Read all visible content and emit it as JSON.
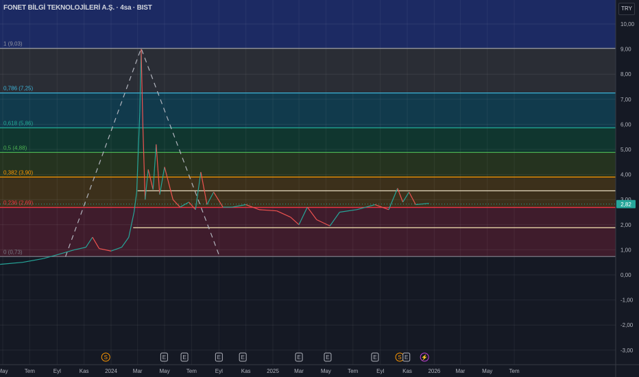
{
  "header": {
    "title": "FONET BİLGİ TEKNOLOJİLERİ A.Ş. · 4sa · BIST",
    "currency": "TRY"
  },
  "chart_data": {
    "type": "line",
    "ylim": [
      -3.3,
      10.5
    ],
    "y_ticks": [
      "10,00",
      "9,00",
      "8,00",
      "7,00",
      "6,00",
      "5,00",
      "4,00",
      "3,00",
      "2,00",
      "1,00",
      "0,00",
      "-1,00",
      "-2,00",
      "-3,00"
    ],
    "y_tick_values": [
      10,
      9,
      8,
      7,
      6,
      5,
      4,
      3,
      2,
      1,
      0,
      -1,
      -2,
      -3
    ],
    "x_ticks": [
      {
        "label": "May",
        "date": "2023-05-01"
      },
      {
        "label": "Tem",
        "date": "2023-07-01"
      },
      {
        "label": "Eyl",
        "date": "2023-09-01"
      },
      {
        "label": "Kas",
        "date": "2023-11-01"
      },
      {
        "label": "2024",
        "date": "2024-01-01"
      },
      {
        "label": "Mar",
        "date": "2024-03-01"
      },
      {
        "label": "May",
        "date": "2024-05-01"
      },
      {
        "label": "Tem",
        "date": "2024-07-01"
      },
      {
        "label": "Eyl",
        "date": "2024-09-01"
      },
      {
        "label": "Kas",
        "date": "2024-11-01"
      },
      {
        "label": "2025",
        "date": "2025-01-01"
      },
      {
        "label": "Mar",
        "date": "2025-03-01"
      },
      {
        "label": "May",
        "date": "2025-05-01"
      },
      {
        "label": "Tem",
        "date": "2025-07-01"
      },
      {
        "label": "Eyl",
        "date": "2025-09-01"
      },
      {
        "label": "Kas",
        "date": "2025-11-01"
      },
      {
        "label": "2026",
        "date": "2026-01-01"
      },
      {
        "label": "Mar",
        "date": "2026-03-01"
      },
      {
        "label": "May",
        "date": "2026-05-01"
      },
      {
        "label": "Tem",
        "date": "2026-07-01"
      }
    ],
    "last_price": "2,82",
    "last_price_value": 2.82,
    "series": [
      {
        "color": "#26a69a",
        "points": [
          [
            "2023-04-25",
            0.42
          ],
          [
            "2023-06-15",
            0.5
          ],
          [
            "2023-08-01",
            0.65
          ],
          [
            "2023-09-01",
            0.8
          ],
          [
            "2023-10-10",
            1.0
          ],
          [
            "2023-11-05",
            1.1
          ],
          [
            "2023-11-20",
            1.5
          ],
          [
            "2023-12-05",
            1.05
          ],
          [
            "2024-01-01",
            0.95
          ],
          [
            "2024-01-25",
            1.1
          ],
          [
            "2024-02-10",
            1.5
          ],
          [
            "2024-02-22",
            2.5
          ],
          [
            "2024-02-28",
            3.3
          ],
          [
            "2024-03-06",
            6.5
          ],
          [
            "2024-03-09",
            9.0
          ],
          [
            "2024-03-13",
            5.9
          ],
          [
            "2024-03-18",
            3.0
          ],
          [
            "2024-03-25",
            4.2
          ],
          [
            "2024-04-05",
            3.4
          ],
          [
            "2024-04-12",
            5.2
          ],
          [
            "2024-04-20",
            3.2
          ],
          [
            "2024-05-01",
            4.3
          ],
          [
            "2024-05-20",
            3.0
          ],
          [
            "2024-06-05",
            2.7
          ],
          [
            "2024-06-25",
            2.9
          ],
          [
            "2024-07-10",
            2.6
          ],
          [
            "2024-07-22",
            4.1
          ],
          [
            "2024-08-05",
            2.8
          ],
          [
            "2024-08-20",
            3.3
          ],
          [
            "2024-09-10",
            2.7
          ],
          [
            "2024-10-01",
            2.7
          ],
          [
            "2024-11-01",
            2.8
          ],
          [
            "2024-12-01",
            2.6
          ],
          [
            "2025-01-10",
            2.55
          ],
          [
            "2025-02-10",
            2.3
          ],
          [
            "2025-03-01",
            2.0
          ],
          [
            "2025-03-20",
            2.7
          ],
          [
            "2025-04-10",
            2.2
          ],
          [
            "2025-05-10",
            1.95
          ],
          [
            "2025-06-01",
            2.5
          ],
          [
            "2025-07-10",
            2.6
          ],
          [
            "2025-08-20",
            2.8
          ],
          [
            "2025-09-20",
            2.6
          ],
          [
            "2025-10-10",
            3.45
          ],
          [
            "2025-10-22",
            2.9
          ],
          [
            "2025-11-05",
            3.3
          ],
          [
            "2025-11-20",
            2.8
          ],
          [
            "2025-12-20",
            2.85
          ]
        ]
      }
    ],
    "fibonacci": [
      {
        "label": "1 (9,03)",
        "value": 9.03,
        "color": "#9598a1",
        "fill": "#2a2d35"
      },
      {
        "label": "0,786 (7,25)",
        "value": 7.25,
        "color": "#3cb4d8",
        "fill": "#113a4c"
      },
      {
        "label": "0,618 (5,86)",
        "value": 5.86,
        "color": "#22ab94",
        "fill": "#10362f"
      },
      {
        "label": "0,5 (4,88)",
        "value": 4.88,
        "color": "#4caf50",
        "fill": "#25331f"
      },
      {
        "label": "0,382 (3,90)",
        "value": 3.9,
        "color": "#ff9800",
        "fill": "#3c301b"
      },
      {
        "label": "0,236 (2,69)",
        "value": 2.69,
        "color": "#f23645",
        "fill": "#3f1c2c"
      },
      {
        "label": "0 (0,73)",
        "value": 0.73,
        "color": "#787b86",
        "fill": null
      }
    ],
    "zone_above_color": "#1c2a63",
    "horizontal_lines": [
      {
        "value": 3.35,
        "from": "2024-03-01",
        "color": "#e8dcc0"
      },
      {
        "value": 1.88,
        "from": "2024-02-20",
        "color": "#e8d5a8"
      }
    ],
    "trend_lines": [
      [
        "2023-09-20",
        0.73
      ],
      [
        "2024-03-09",
        9.03
      ],
      [
        "2024-09-01",
        0.8
      ]
    ],
    "events": [
      {
        "type": "S",
        "date": "2023-12-20",
        "color": "#ff9800"
      },
      {
        "type": "E",
        "date": "2024-04-30",
        "color": "#b2b5be"
      },
      {
        "type": "E",
        "date": "2024-06-15",
        "color": "#b2b5be"
      },
      {
        "type": "E",
        "date": "2024-09-01",
        "color": "#b2b5be"
      },
      {
        "type": "E",
        "date": "2024-10-25",
        "color": "#b2b5be"
      },
      {
        "type": "E",
        "date": "2025-03-01",
        "color": "#b2b5be"
      },
      {
        "type": "E",
        "date": "2025-05-05",
        "color": "#b2b5be"
      },
      {
        "type": "E",
        "date": "2025-08-20",
        "color": "#b2b5be"
      },
      {
        "type": "S",
        "date": "2025-10-15",
        "color": "#ff9800"
      },
      {
        "type": "E",
        "date": "2025-10-30",
        "color": "#b2b5be"
      },
      {
        "type": "⚡",
        "date": "2025-12-10",
        "color": "#c041d8"
      }
    ]
  }
}
